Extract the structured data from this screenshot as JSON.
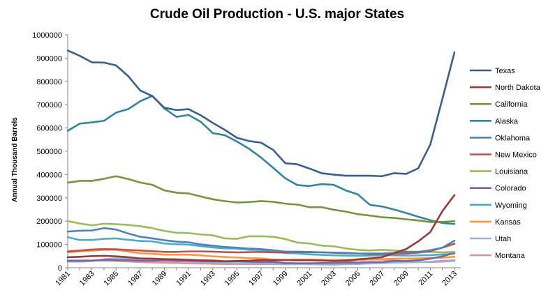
{
  "chart_data": {
    "type": "line",
    "title": "Crude Oil Production - U.S. major States",
    "xlabel": "",
    "ylabel": "Annual Thousand  Barrels",
    "ylim": [
      0,
      1000000
    ],
    "yticks": [
      0,
      100000,
      200000,
      300000,
      400000,
      500000,
      600000,
      700000,
      800000,
      900000,
      1000000
    ],
    "x": [
      1981,
      1982,
      1983,
      1984,
      1985,
      1986,
      1987,
      1988,
      1989,
      1990,
      1991,
      1992,
      1993,
      1994,
      1995,
      1996,
      1997,
      1998,
      1999,
      2000,
      2001,
      2002,
      2003,
      2004,
      2005,
      2006,
      2007,
      2008,
      2009,
      2010,
      2011,
      2012,
      2013
    ],
    "xtick_labels": [
      "1981",
      "1983",
      "1985",
      "1987",
      "1989",
      "1991",
      "1993",
      "1995",
      "1997",
      "1999",
      "2001",
      "2003",
      "2005",
      "2007",
      "2009",
      "2011",
      "2013"
    ],
    "grid": false,
    "legend_position": "right",
    "series": [
      {
        "name": "Texas",
        "color": "#3a5f8f",
        "values": [
          933000,
          910000,
          882000,
          881000,
          869000,
          823000,
          761000,
          737000,
          687000,
          677000,
          681000,
          655000,
          622000,
          592000,
          558000,
          544000,
          537000,
          506000,
          449000,
          444000,
          426000,
          406000,
          400000,
          395000,
          395000,
          395000,
          393000,
          406000,
          403000,
          427000,
          529000,
          725000,
          925000
        ]
      },
      {
        "name": "North Dakota",
        "color": "#953b39",
        "values": [
          45000,
          47000,
          50000,
          51000,
          49000,
          45000,
          40000,
          39000,
          37000,
          36000,
          34000,
          32000,
          31000,
          28000,
          29000,
          30000,
          33000,
          32000,
          33000,
          32000,
          32000,
          31000,
          29000,
          31000,
          36000,
          40000,
          45000,
          63000,
          80000,
          113000,
          153000,
          243000,
          312000
        ]
      },
      {
        "name": "California",
        "color": "#77933c",
        "values": [
          365000,
          373000,
          373000,
          382000,
          393000,
          381000,
          366000,
          356000,
          332000,
          322000,
          319000,
          306000,
          294000,
          286000,
          280000,
          282000,
          286000,
          283000,
          275000,
          271000,
          260000,
          260000,
          249000,
          241000,
          230000,
          224000,
          217000,
          214000,
          208000,
          203000,
          196000,
          197000,
          200000
        ]
      },
      {
        "name": "Alaska",
        "color": "#31859b",
        "values": [
          588000,
          619000,
          624000,
          631000,
          666000,
          681000,
          715000,
          738000,
          684000,
          648000,
          656000,
          627000,
          578000,
          569000,
          542000,
          511000,
          473000,
          429000,
          384000,
          355000,
          351000,
          359000,
          356000,
          332000,
          315000,
          270000,
          263000,
          250000,
          235000,
          219000,
          204000,
          192000,
          188000
        ]
      },
      {
        "name": "Oklahoma",
        "color": "#4f81bd",
        "values": [
          155000,
          159000,
          160000,
          170000,
          164000,
          147000,
          133000,
          126000,
          118000,
          112000,
          109000,
          100000,
          95000,
          89000,
          86000,
          82000,
          80000,
          75000,
          69000,
          69000,
          68000,
          66000,
          64000,
          62000,
          61000,
          61000,
          61000,
          63000,
          68000,
          68000,
          75000,
          86000,
          116000
        ]
      },
      {
        "name": "New Mexico",
        "color": "#c0504d",
        "values": [
          70000,
          74000,
          78000,
          80000,
          79000,
          76000,
          74000,
          71000,
          68000,
          68000,
          70000,
          70000,
          69000,
          67000,
          66000,
          67000,
          68000,
          66000,
          65000,
          67000,
          66000,
          66000,
          65000,
          64000,
          61000,
          59000,
          59000,
          60000,
          61000,
          65000,
          71000,
          86000,
          103000
        ]
      },
      {
        "name": "Louisiana",
        "color": "#9bbb59",
        "values": [
          200000,
          190000,
          182000,
          189000,
          187000,
          184000,
          178000,
          170000,
          158000,
          150000,
          149000,
          143000,
          139000,
          126000,
          124000,
          135000,
          135000,
          133000,
          123000,
          108000,
          104000,
          95000,
          92000,
          83000,
          77000,
          74000,
          77000,
          74000,
          70000,
          68000,
          68000,
          66000,
          68000
        ]
      },
      {
        "name": "Colorado",
        "color": "#8064a2",
        "values": [
          30000,
          30000,
          31000,
          34000,
          33000,
          32000,
          30000,
          30000,
          31000,
          30000,
          30000,
          28000,
          27000,
          27000,
          28000,
          26000,
          25000,
          25000,
          20000,
          19000,
          19000,
          20000,
          21000,
          22000,
          22000,
          24000,
          24000,
          29000,
          29000,
          32000,
          39000,
          49000,
          64000
        ]
      },
      {
        "name": "Wyoming",
        "color": "#4bacc6",
        "values": [
          131000,
          119000,
          119000,
          124000,
          126000,
          120000,
          115000,
          113000,
          104000,
          101000,
          99000,
          93000,
          87000,
          83000,
          82000,
          77000,
          76000,
          71000,
          63000,
          61000,
          57000,
          55000,
          53000,
          52000,
          51000,
          52000,
          54000,
          53000,
          52000,
          53000,
          54000,
          57000,
          60000
        ]
      },
      {
        "name": "Kansas",
        "color": "#f79646",
        "values": [
          66000,
          70000,
          73000,
          77000,
          77000,
          69000,
          62000,
          60000,
          56000,
          56000,
          56000,
          53000,
          49000,
          46000,
          44000,
          41000,
          40000,
          35000,
          33000,
          35000,
          35000,
          34000,
          33000,
          34000,
          33000,
          35000,
          36000,
          39000,
          39000,
          40000,
          42000,
          43000,
          47000
        ]
      },
      {
        "name": "Utah",
        "color": "#95b3d7",
        "values": [
          26000,
          26000,
          28000,
          36000,
          41000,
          39000,
          34000,
          33000,
          30000,
          28000,
          27000,
          25000,
          23000,
          21000,
          19000,
          20000,
          20000,
          19000,
          16000,
          16000,
          15000,
          14000,
          13000,
          15000,
          16000,
          18000,
          20000,
          22000,
          23000,
          24000,
          26000,
          30000,
          32000
        ]
      },
      {
        "name": "Montana",
        "color": "#d99694",
        "values": [
          31000,
          31000,
          30000,
          30000,
          29000,
          27000,
          24000,
          23000,
          21000,
          20000,
          19000,
          18000,
          17000,
          16000,
          16000,
          16000,
          16000,
          16000,
          15000,
          15000,
          16000,
          17000,
          19000,
          24000,
          33000,
          36000,
          35000,
          32000,
          28000,
          25000,
          24000,
          26000,
          29000
        ]
      }
    ]
  }
}
